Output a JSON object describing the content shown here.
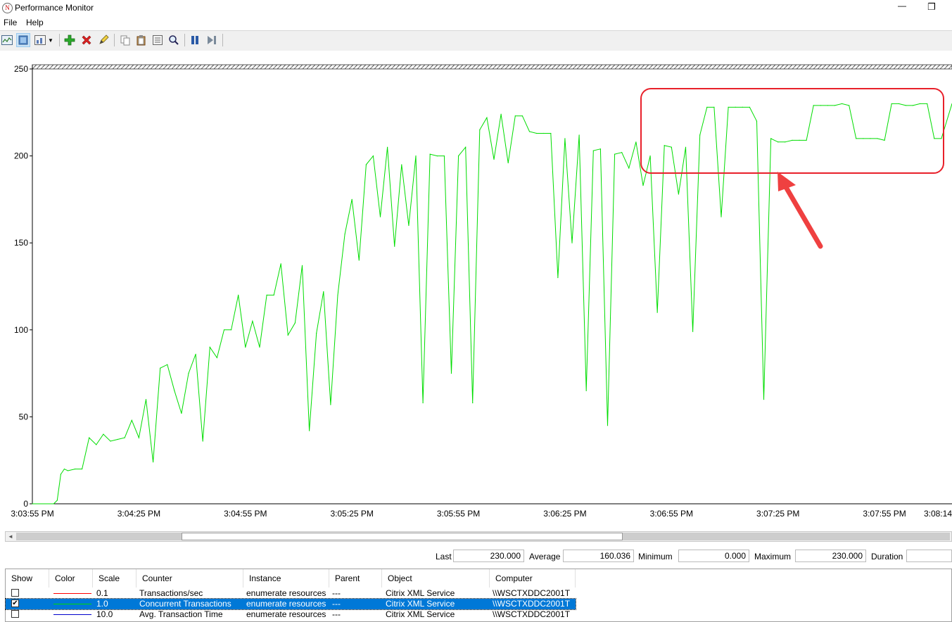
{
  "window": {
    "title": "Performance Monitor",
    "min_glyph": "—",
    "max_glyph": "❐"
  },
  "menu": [
    "File",
    "Help"
  ],
  "toolbar": {
    "icons": [
      "view-graph-icon",
      "view-current-activity-icon",
      "change-graph-type-icon",
      "dropdown-arrow-icon",
      "add-counter-icon",
      "delete-counter-icon",
      "highlight-icon",
      "copy-properties-icon",
      "paste-counter-list-icon",
      "properties-icon",
      "zoom-icon",
      "freeze-display-icon",
      "update-data-icon"
    ]
  },
  "chart_data": {
    "type": "line",
    "y_ticks": [
      "250",
      "200",
      "150",
      "100",
      "50",
      "0"
    ],
    "x_ticks": [
      "3:03:55 PM",
      "3:04:25 PM",
      "3:04:55 PM",
      "3:05:25 PM",
      "3:05:55 PM",
      "3:06:25 PM",
      "3:06:55 PM",
      "3:07:25 PM",
      "3:07:55 PM",
      "3:08:14"
    ],
    "ylim": [
      0,
      250
    ],
    "x_start_seconds": 0,
    "x_end_seconds": 259,
    "grid": false,
    "series": [
      {
        "name": "Concurrent Transactions",
        "color": "#00dd00",
        "x": [
          0,
          6,
          7,
          8,
          9,
          10,
          12,
          14,
          16,
          18,
          20,
          22,
          24,
          26,
          28,
          30,
          32,
          34,
          36,
          38,
          40,
          42,
          44,
          46,
          48,
          50,
          52,
          54,
          56,
          58,
          60,
          62,
          64,
          66,
          68,
          70,
          72,
          74,
          76,
          78,
          80,
          82,
          84,
          86,
          88,
          90,
          92,
          94,
          96,
          98,
          100,
          102,
          104,
          106,
          108,
          110,
          112,
          114,
          116,
          118,
          120,
          122,
          124,
          126,
          128,
          130,
          132,
          134,
          136,
          138,
          140,
          142,
          144,
          146,
          148,
          150,
          152,
          154,
          156,
          158,
          160,
          162,
          164,
          166,
          168,
          170,
          172,
          174,
          176,
          178,
          180,
          182,
          184,
          186,
          188,
          190,
          192,
          194,
          196,
          198,
          200,
          202,
          204,
          206,
          208,
          210,
          212,
          214,
          216,
          218,
          220,
          222,
          224,
          226,
          228,
          230,
          232,
          234,
          236,
          238,
          240,
          242,
          244,
          246,
          248,
          250,
          252,
          254,
          256,
          259
        ],
        "y": [
          0,
          0,
          2,
          17,
          20,
          19,
          20,
          20,
          38,
          34,
          40,
          36,
          37,
          38,
          48,
          38,
          60,
          24,
          78,
          80,
          65,
          52,
          75,
          86,
          36,
          90,
          84,
          100,
          100,
          120,
          90,
          105,
          90,
          120,
          120,
          138,
          97,
          104,
          137,
          42,
          98,
          122,
          57,
          120,
          155,
          175,
          140,
          195,
          200,
          165,
          205,
          148,
          195,
          160,
          200,
          58,
          201,
          200,
          200,
          75,
          200,
          205,
          58,
          215,
          222,
          198,
          224,
          196,
          223,
          223,
          214,
          213,
          213,
          213,
          130,
          210,
          150,
          212,
          65,
          203,
          204,
          45,
          201,
          202,
          193,
          208,
          183,
          200,
          110,
          206,
          205,
          178,
          205,
          99,
          212,
          228,
          228,
          165,
          228,
          228,
          228,
          228,
          220,
          60,
          210,
          208,
          208,
          209,
          209,
          209,
          229,
          229,
          229,
          229,
          230,
          229,
          210,
          210,
          210,
          210,
          209,
          230,
          230,
          229,
          229,
          230,
          230,
          210,
          210,
          230
        ]
      }
    ]
  },
  "scrollbar": {
    "left_arrow": "◄"
  },
  "stats": {
    "last_label": "Last",
    "last_value": "230.000",
    "average_label": "Average",
    "average_value": "160.036",
    "minimum_label": "Minimum",
    "minimum_value": "0.000",
    "maximum_label": "Maximum",
    "maximum_value": "230.000",
    "duration_label": "Duration"
  },
  "legend": {
    "headers": [
      "Show",
      "Color",
      "Scale",
      "Counter",
      "Instance",
      "Parent",
      "Object",
      "Computer"
    ],
    "rows": [
      {
        "checked": "",
        "color": "#ff0000",
        "scale": "0.1",
        "counter": "Transactions/sec",
        "instance": "enumerate resources",
        "parent": "---",
        "object": "Citrix XML Service",
        "computer": "\\\\WSCTXDDC2001T"
      },
      {
        "checked": "✔",
        "color": "#00dd00",
        "scale": "1.0",
        "counter": "Concurrent Transactions",
        "instance": "enumerate resources",
        "parent": "---",
        "object": "Citrix XML Service",
        "computer": "\\\\WSCTXDDC2001T"
      },
      {
        "checked": "",
        "color": "#0000cc",
        "scale": "10.0",
        "counter": "Avg. Transaction Time",
        "instance": "enumerate resources",
        "parent": "---",
        "object": "Citrix XML Service",
        "computer": "\\\\WSCTXDDC2001T"
      }
    ]
  },
  "annotation": {
    "highlight_color": "#e8202a",
    "arrow_color": "#ef4040"
  }
}
